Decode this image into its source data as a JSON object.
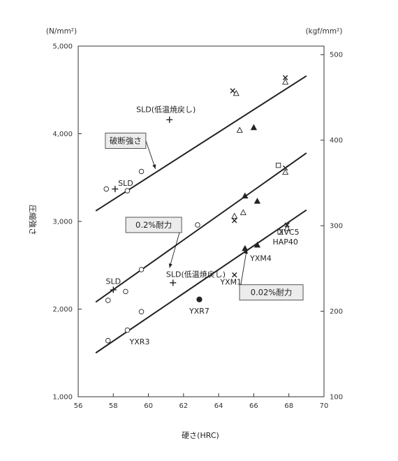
{
  "chart_data": {
    "type": "scatter",
    "title": "",
    "xlabel": "硬さ(HRC)",
    "ylabel": "圧縮強さ",
    "ylabel_left_unit": "(N/mm²)",
    "ylabel_right_unit": "(kgf/mm²)",
    "xlim": [
      56,
      70
    ],
    "ylim": [
      1000,
      5000
    ],
    "ylim_right": [
      100,
      510
    ],
    "x_ticks": [
      "56",
      "58",
      "60",
      "62",
      "64",
      "66",
      "68",
      "70"
    ],
    "y_ticks": [
      "1,000",
      "2,000",
      "3,000",
      "4,000",
      "5,000"
    ],
    "y_ticks_right": [
      "100",
      "200",
      "300",
      "400",
      "500"
    ],
    "grid": false,
    "lines": [
      {
        "label": "破断強さ",
        "x": [
          57.0,
          69.0
        ],
        "y": [
          3120,
          4660
        ]
      },
      {
        "label": "0.2%耐力",
        "x": [
          57.0,
          69.0
        ],
        "y": [
          2080,
          3780
        ]
      },
      {
        "label": "0.02%耐力",
        "x": [
          57.0,
          69.0
        ],
        "y": [
          1500,
          3130
        ]
      }
    ],
    "series": [
      {
        "marker": "circle-open",
        "points": [
          [
            57.6,
            3370
          ],
          [
            58.8,
            3350
          ],
          [
            59.6,
            3570
          ],
          [
            62.8,
            2960
          ],
          [
            59.6,
            2450
          ],
          [
            57.7,
            2100
          ],
          [
            58.7,
            2200
          ],
          [
            59.6,
            1970
          ],
          [
            58.8,
            1760
          ],
          [
            57.7,
            1640
          ]
        ]
      },
      {
        "marker": "circle-filled",
        "points": [
          [
            62.9,
            2110
          ]
        ]
      },
      {
        "marker": "plus",
        "points": [
          [
            58.1,
            3370
          ],
          [
            61.2,
            4160
          ],
          [
            58.0,
            2220
          ],
          [
            61.4,
            2300
          ]
        ]
      },
      {
        "marker": "cross",
        "points": [
          [
            64.8,
            4490
          ],
          [
            67.8,
            4640
          ],
          [
            67.8,
            3610
          ],
          [
            64.9,
            3010
          ],
          [
            67.9,
            2960
          ],
          [
            64.9,
            2390
          ]
        ]
      },
      {
        "marker": "triangle-open",
        "points": [
          [
            65.0,
            4460
          ],
          [
            67.8,
            4590
          ],
          [
            65.2,
            4040
          ],
          [
            67.8,
            3560
          ],
          [
            64.9,
            3060
          ],
          [
            65.4,
            3100
          ],
          [
            67.9,
            2920
          ]
        ]
      },
      {
        "marker": "triangle-filled",
        "points": [
          [
            66.0,
            4070
          ],
          [
            65.5,
            3290
          ],
          [
            66.2,
            3230
          ],
          [
            65.5,
            2690
          ],
          [
            66.2,
            2730
          ]
        ]
      },
      {
        "marker": "square-open",
        "points": [
          [
            67.4,
            3640
          ],
          [
            67.5,
            2880
          ]
        ]
      }
    ],
    "annotations": [
      {
        "text": "SLD(低温焼戻し)",
        "x": 61.0,
        "y": 4280
      },
      {
        "text": "SLD",
        "x": 58.7,
        "y": 3440
      },
      {
        "text": "SLD",
        "x": 58.0,
        "y": 2320
      },
      {
        "text": "SLD(低温焼戻し)",
        "x": 62.7,
        "y": 2400
      },
      {
        "text": "YXR7",
        "x": 62.9,
        "y": 1980
      },
      {
        "text": "YXR3",
        "x": 59.5,
        "y": 1630
      },
      {
        "text": "YXM1",
        "x": 64.7,
        "y": 2310
      },
      {
        "text": "YXM4",
        "x": 66.4,
        "y": 2580
      },
      {
        "text": "XVC5",
        "x": 68.0,
        "y": 2880
      },
      {
        "text": "HAP40",
        "x": 67.8,
        "y": 2770
      }
    ],
    "boxed_labels": [
      {
        "text": "破断強さ",
        "x": 58.7,
        "y": 3920,
        "arrow_to": [
          60.4,
          3600
        ]
      },
      {
        "text": "0.2%耐力",
        "x": 60.3,
        "y": 2960,
        "arrow_to": [
          61.2,
          2470
        ]
      },
      {
        "text": "0.02%耐力",
        "x": 67.0,
        "y": 2190,
        "arrow_to": [
          65.6,
          2680
        ]
      }
    ]
  }
}
